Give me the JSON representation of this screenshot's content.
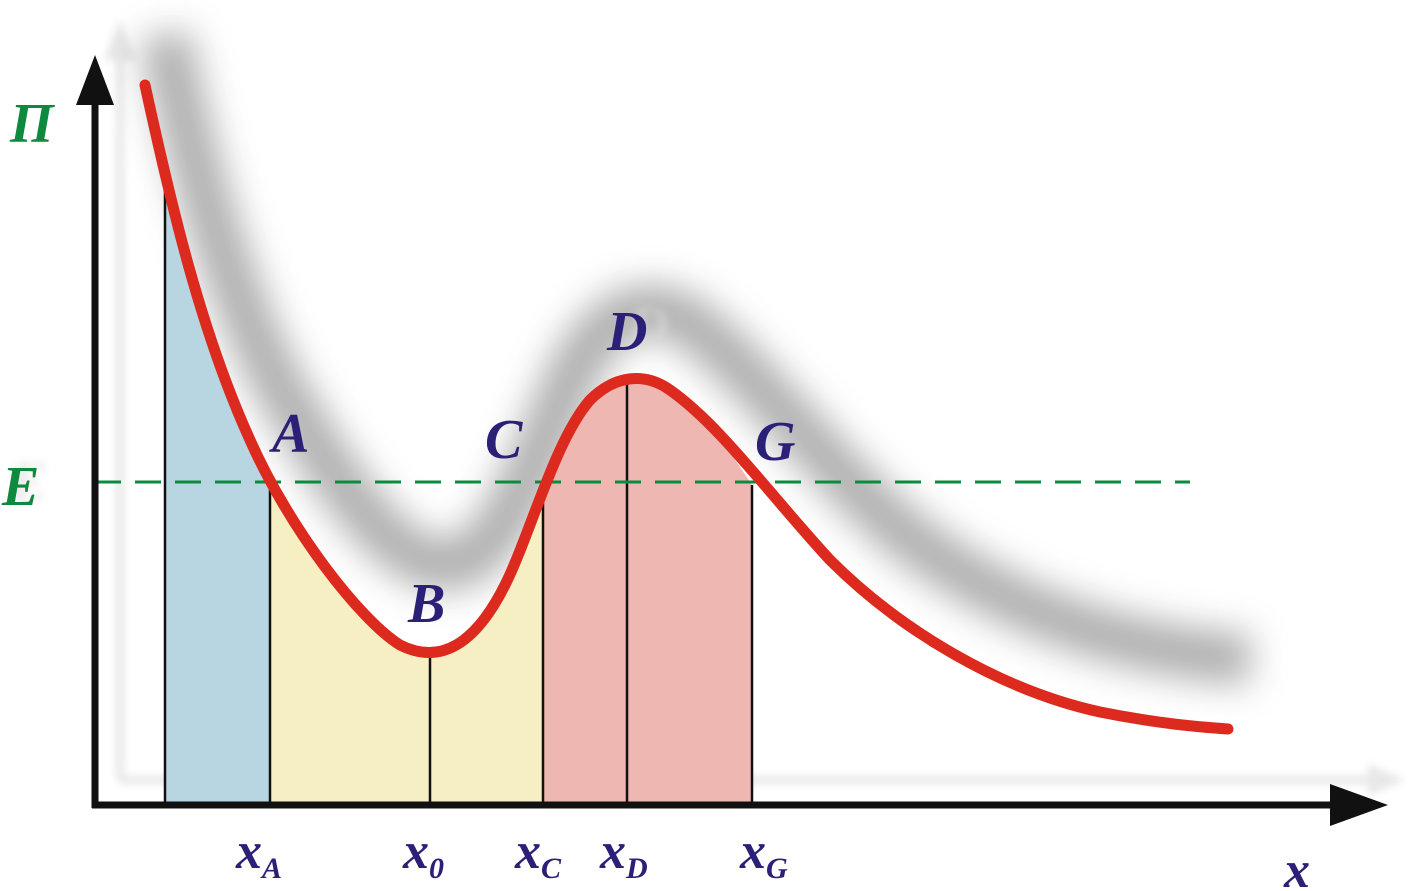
{
  "axes": {
    "y_label": "П",
    "x_label": "x"
  },
  "energy_level": {
    "label": "E",
    "color": "#0e8a3e"
  },
  "points": {
    "A": "A",
    "B": "B",
    "C": "C",
    "D": "D",
    "G": "G"
  },
  "x_ticks": [
    {
      "base": "x",
      "sub": "A"
    },
    {
      "base": "x",
      "sub": "0"
    },
    {
      "base": "x",
      "sub": "C"
    },
    {
      "base": "x",
      "sub": "D"
    },
    {
      "base": "x",
      "sub": "G"
    }
  ],
  "colors": {
    "curve": "#dd2a1e",
    "region_left": "#b8d5e2",
    "region_well": "#f6efc3",
    "region_barrier": "#efb7b2",
    "axis": "#111111",
    "text": "#2b2078"
  }
}
